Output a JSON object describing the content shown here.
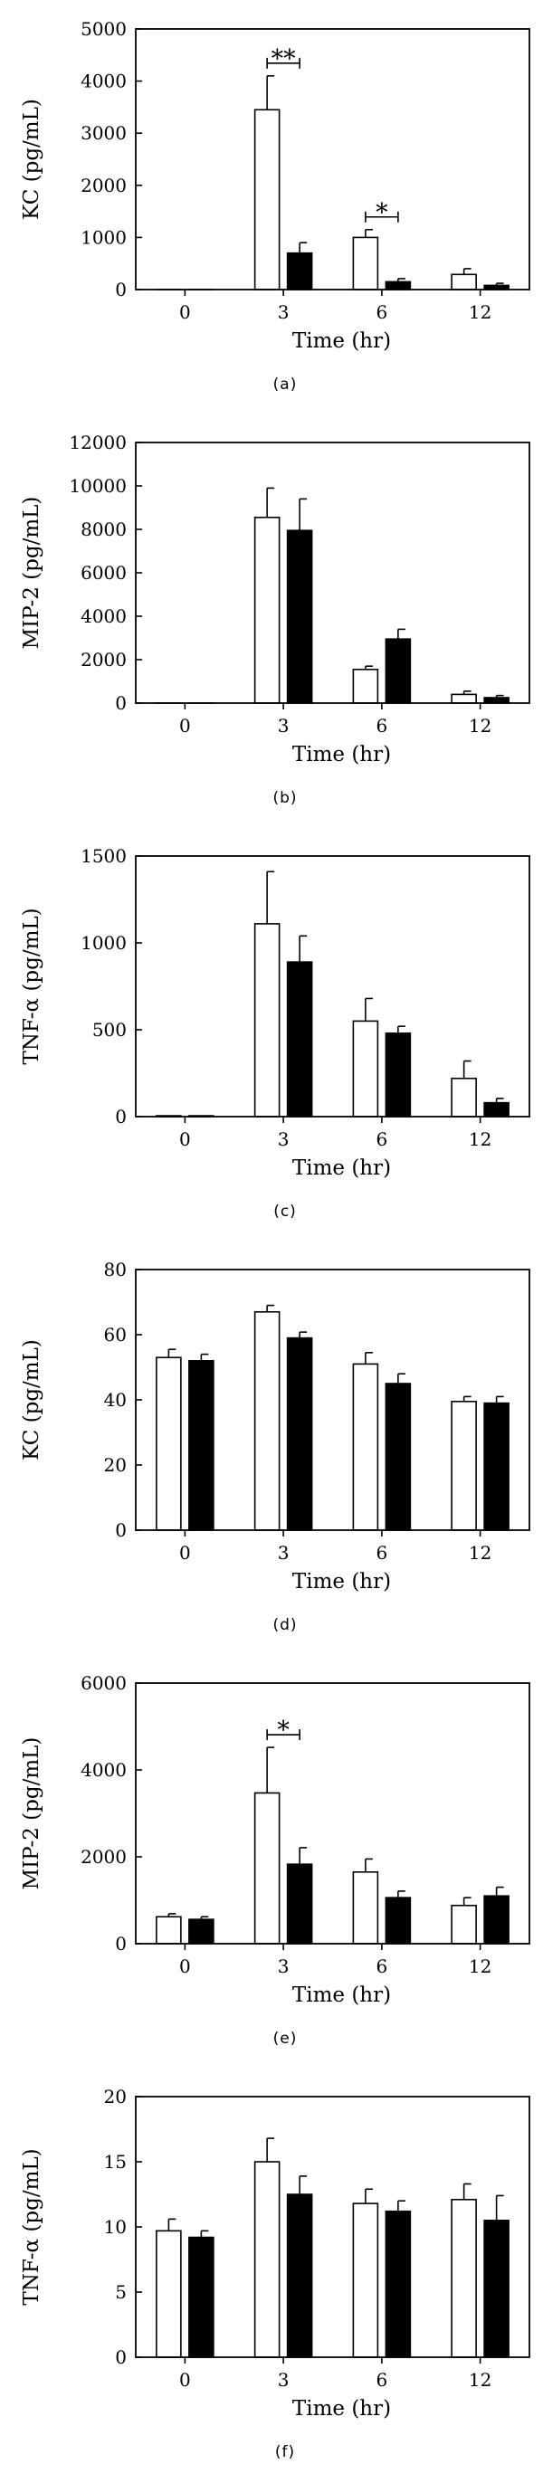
{
  "chart_data": [
    {
      "type": "bar",
      "panel_label": "(a)",
      "title": "",
      "xlabel": "Time (hr)",
      "ylabel": "KC (pg/mL)",
      "categories": [
        "0",
        "3",
        "6",
        "12"
      ],
      "ylim": [
        0,
        5000
      ],
      "yticks": [
        0,
        1000,
        2000,
        3000,
        4000,
        5000
      ],
      "grid": false,
      "series": [
        {
          "name": "open",
          "color": "#ffffff",
          "values": [
            0,
            3450,
            1000,
            290
          ],
          "errors": [
            0,
            650,
            150,
            110
          ]
        },
        {
          "name": "filled",
          "color": "#000000",
          "values": [
            0,
            700,
            150,
            80
          ],
          "errors": [
            0,
            200,
            60,
            40
          ]
        }
      ],
      "significance": [
        {
          "category": "3",
          "label": "**"
        },
        {
          "category": "6",
          "label": "*"
        }
      ]
    },
    {
      "type": "bar",
      "panel_label": "(b)",
      "title": "",
      "xlabel": "Time (hr)",
      "ylabel": "MIP-2 (pg/mL)",
      "categories": [
        "0",
        "3",
        "6",
        "12"
      ],
      "ylim": [
        0,
        12000
      ],
      "yticks": [
        0,
        2000,
        4000,
        6000,
        8000,
        10000,
        12000
      ],
      "grid": false,
      "series": [
        {
          "name": "open",
          "color": "#ffffff",
          "values": [
            0,
            8550,
            1550,
            400
          ],
          "errors": [
            0,
            1350,
            150,
            150
          ]
        },
        {
          "name": "filled",
          "color": "#000000",
          "values": [
            0,
            7950,
            2950,
            250
          ],
          "errors": [
            0,
            1450,
            450,
            100
          ]
        }
      ],
      "significance": []
    },
    {
      "type": "bar",
      "panel_label": "(c)",
      "title": "",
      "xlabel": "Time (hr)",
      "ylabel": "TNF-α (pg/mL)",
      "categories": [
        "0",
        "3",
        "6",
        "12"
      ],
      "ylim": [
        0,
        1500
      ],
      "yticks": [
        0,
        500,
        1000,
        1500
      ],
      "grid": false,
      "series": [
        {
          "name": "open",
          "color": "#ffffff",
          "values": [
            5,
            1110,
            550,
            220
          ],
          "errors": [
            0,
            300,
            130,
            100
          ]
        },
        {
          "name": "filled",
          "color": "#000000",
          "values": [
            5,
            890,
            480,
            80
          ],
          "errors": [
            0,
            150,
            40,
            25
          ]
        }
      ],
      "significance": []
    },
    {
      "type": "bar",
      "panel_label": "(d)",
      "title": "",
      "xlabel": "Time (hr)",
      "ylabel": "KC (pg/mL)",
      "categories": [
        "0",
        "3",
        "6",
        "12"
      ],
      "ylim": [
        0,
        80
      ],
      "yticks": [
        0,
        20,
        40,
        60,
        80
      ],
      "grid": false,
      "series": [
        {
          "name": "open",
          "color": "#ffffff",
          "values": [
            53,
            67,
            51,
            39.5
          ],
          "errors": [
            2.5,
            2,
            3.5,
            1.5
          ]
        },
        {
          "name": "filled",
          "color": "#000000",
          "values": [
            52,
            59,
            45,
            39
          ],
          "errors": [
            2,
            1.8,
            3,
            2
          ]
        }
      ],
      "significance": []
    },
    {
      "type": "bar",
      "panel_label": "(e)",
      "title": "",
      "xlabel": "Time (hr)",
      "ylabel": "MIP-2 (pg/mL)",
      "categories": [
        "0",
        "3",
        "6",
        "12"
      ],
      "ylim": [
        0,
        6000
      ],
      "yticks": [
        0,
        2000,
        4000,
        6000
      ],
      "grid": false,
      "series": [
        {
          "name": "open",
          "color": "#ffffff",
          "values": [
            620,
            3470,
            1650,
            880
          ],
          "errors": [
            70,
            1050,
            300,
            180
          ]
        },
        {
          "name": "filled",
          "color": "#000000",
          "values": [
            560,
            1830,
            1060,
            1100
          ],
          "errors": [
            60,
            380,
            150,
            200
          ]
        }
      ],
      "significance": [
        {
          "category": "3",
          "label": "*"
        }
      ]
    },
    {
      "type": "bar",
      "panel_label": "(f)",
      "title": "",
      "xlabel": "Time (hr)",
      "ylabel": "TNF-α (pg/mL)",
      "categories": [
        "0",
        "3",
        "6",
        "12"
      ],
      "ylim": [
        0,
        20
      ],
      "yticks": [
        0,
        5,
        10,
        15,
        20
      ],
      "grid": false,
      "series": [
        {
          "name": "open",
          "color": "#ffffff",
          "values": [
            9.7,
            15,
            11.8,
            12.1
          ],
          "errors": [
            0.9,
            1.8,
            1.1,
            1.2
          ]
        },
        {
          "name": "filled",
          "color": "#000000",
          "values": [
            9.2,
            12.5,
            11.2,
            10.5
          ],
          "errors": [
            0.5,
            1.4,
            0.8,
            1.9
          ]
        }
      ],
      "significance": []
    }
  ]
}
